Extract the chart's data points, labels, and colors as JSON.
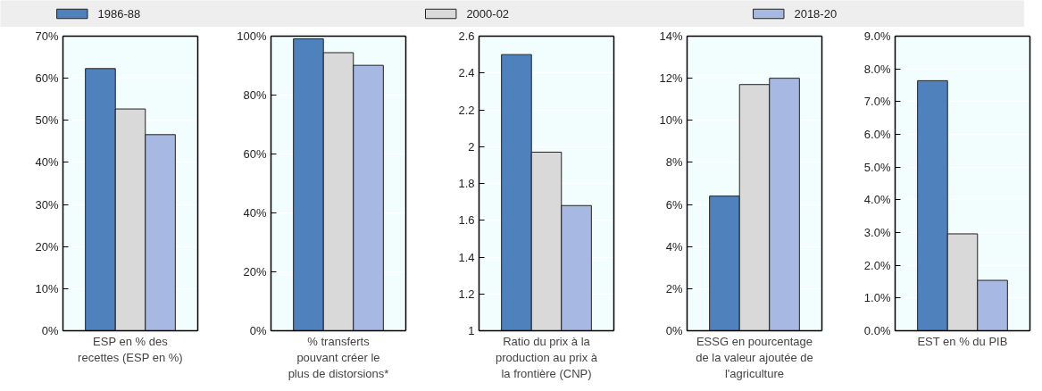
{
  "chart_data": [
    {
      "type": "bar",
      "categories": [
        null
      ],
      "xlabel": "ESP en % des\nrecettes (ESP en %)",
      "legend": "top",
      "grid": "y",
      "tick_labels": "y",
      "ylim": [
        0,
        70
      ],
      "yticks": [
        {
          "value": 0,
          "label": "0%"
        },
        {
          "value": 10,
          "label": "10%"
        },
        {
          "value": 20,
          "label": "20%"
        },
        {
          "value": 30,
          "label": "30%"
        },
        {
          "value": 40,
          "label": "40%"
        },
        {
          "value": 50,
          "label": "50%"
        },
        {
          "value": 60,
          "label": "60%"
        },
        {
          "value": 70,
          "label": "70%"
        }
      ],
      "series": [
        {
          "name": "1986-88",
          "color": "#4f81bd",
          "values": [
            62.3
          ]
        },
        {
          "name": "2000-02",
          "color": "#d9d9d9",
          "values": [
            52.7
          ]
        },
        {
          "name": "2018-20",
          "color": "#a7b8e2",
          "values": [
            46.6
          ]
        }
      ]
    },
    {
      "type": "bar",
      "categories": [
        null
      ],
      "xlabel": "% transferts\npouvant créer le\nplus de distorsions*",
      "grid": "y",
      "tick_labels": "y",
      "ylim": [
        0,
        100
      ],
      "yticks": [
        {
          "value": 0,
          "label": "0%"
        },
        {
          "value": 20,
          "label": "20%"
        },
        {
          "value": 40,
          "label": "40%"
        },
        {
          "value": 60,
          "label": "60%"
        },
        {
          "value": 80,
          "label": "80%"
        },
        {
          "value": 100,
          "label": "100%"
        }
      ],
      "series": [
        {
          "color": "#4f81bd",
          "values": [
            99.1
          ]
        },
        {
          "color": "#d9d9d9",
          "values": [
            94.4
          ]
        },
        {
          "color": "#a7b8e2",
          "values": [
            90.1
          ]
        }
      ]
    },
    {
      "type": "bar",
      "categories": [
        null
      ],
      "xlabel": "Ratio du prix à la\nproduction au prix à\nla frontière (CNP)",
      "grid": "y",
      "tick_labels": "y",
      "ylim": [
        1,
        2.6
      ],
      "yticks": [
        1,
        1.2,
        1.4,
        1.6,
        1.8,
        2,
        2.2,
        2.4,
        2.6
      ],
      "series": [
        {
          "color": "#4f81bd",
          "values": [
            2.5
          ]
        },
        {
          "color": "#d9d9d9",
          "values": [
            1.97
          ]
        },
        {
          "color": "#a7b8e2",
          "values": [
            1.68
          ]
        }
      ]
    },
    {
      "type": "bar",
      "categories": [
        null
      ],
      "xlabel": "ESSG en pourcentage\nde la valeur ajoutée de\nl'agriculture",
      "grid": "y",
      "tick_labels": "y",
      "ylim": [
        0,
        14
      ],
      "yticks": [
        {
          "value": 0,
          "label": "0%"
        },
        {
          "value": 2,
          "label": "2%"
        },
        {
          "value": 4,
          "label": "4%"
        },
        {
          "value": 6,
          "label": "6%"
        },
        {
          "value": 8,
          "label": "8%"
        },
        {
          "value": 10,
          "label": "10%"
        },
        {
          "value": 12,
          "label": "12%"
        },
        {
          "value": 14,
          "label": "14%"
        }
      ],
      "series": [
        {
          "color": "#4f81bd",
          "values": [
            6.4
          ]
        },
        {
          "color": "#d9d9d9",
          "values": [
            11.7
          ]
        },
        {
          "color": "#a7b8e2",
          "values": [
            12.0
          ]
        }
      ]
    },
    {
      "type": "bar",
      "categories": [
        null
      ],
      "xlabel": "EST en % du PIB",
      "grid": "y",
      "tick_labels": "y",
      "ylim": [
        0,
        9
      ],
      "yticks": [
        {
          "value": 0,
          "label": "0.0%"
        },
        {
          "value": 1,
          "label": "1.0%"
        },
        {
          "value": 2,
          "label": "2.0%"
        },
        {
          "value": 3,
          "label": "3.0%"
        },
        {
          "value": 4,
          "label": "4.0%"
        },
        {
          "value": 5,
          "label": "5.0%"
        },
        {
          "value": 6,
          "label": "6.0%"
        },
        {
          "value": 7,
          "label": "7.0%"
        },
        {
          "value": 8,
          "label": "8.0%"
        },
        {
          "value": 9,
          "label": "9.0%"
        }
      ],
      "series": [
        {
          "color": "#4f81bd",
          "values": [
            7.64
          ]
        },
        {
          "color": "#d9d9d9",
          "values": [
            2.96
          ]
        },
        {
          "color": "#a7b8e2",
          "values": [
            1.54
          ]
        }
      ]
    }
  ]
}
